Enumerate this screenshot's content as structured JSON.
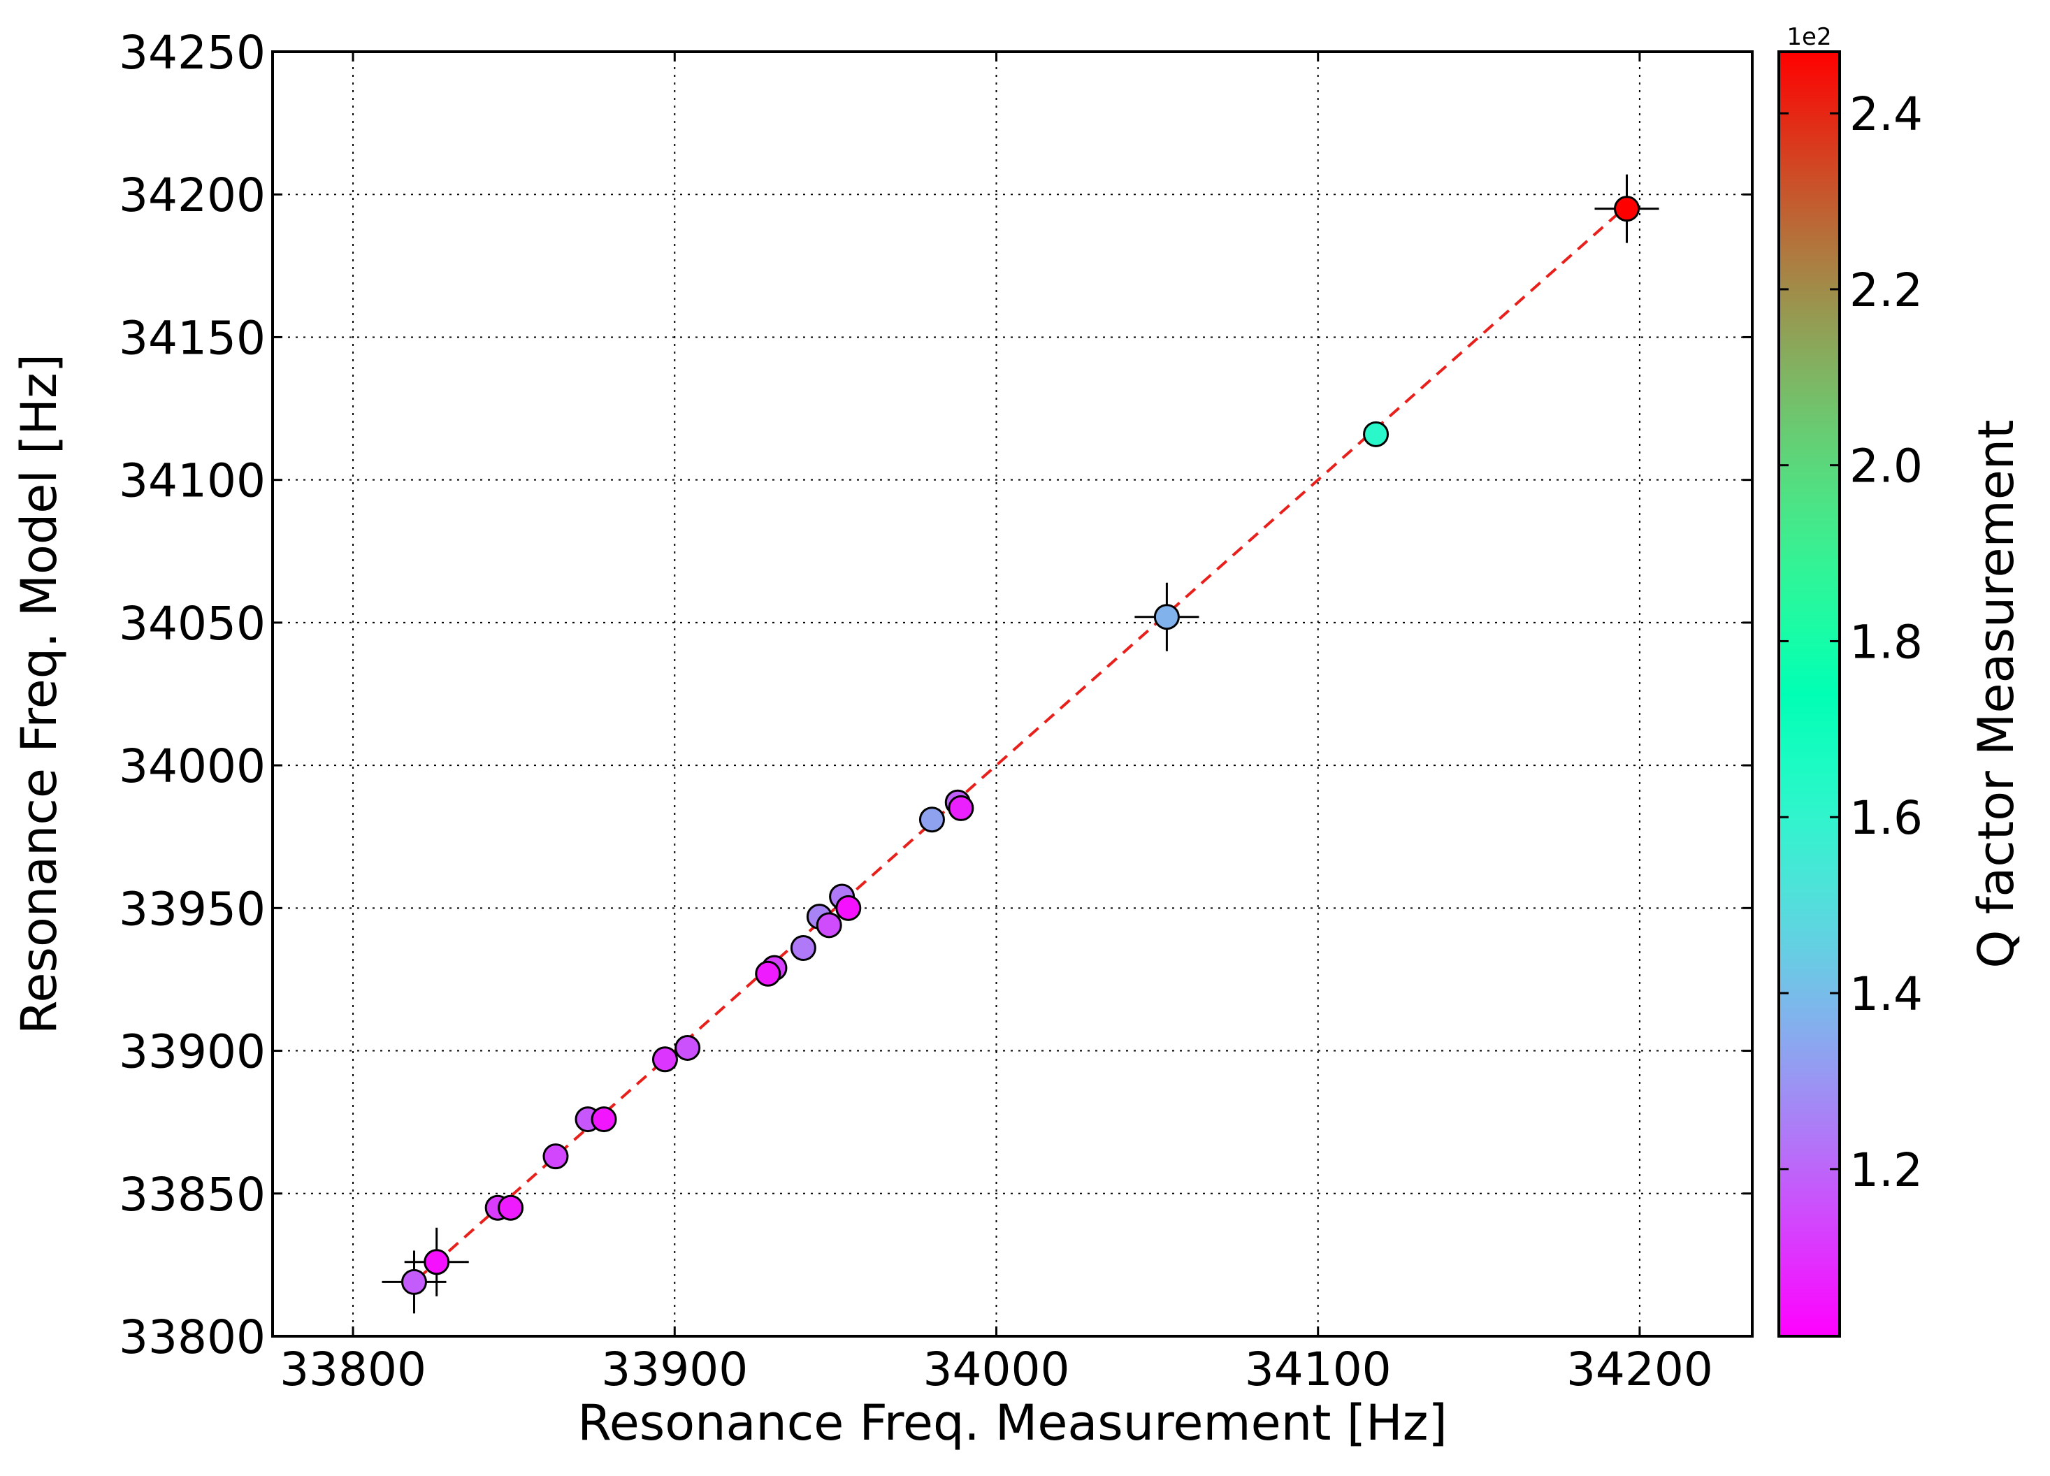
{
  "chart_data": {
    "type": "scatter",
    "title": "",
    "xlabel": "Resonance Freq. Measurement [Hz]",
    "ylabel": "Resonance Freq. Model [Hz]",
    "xlim": [
      33775,
      34235
    ],
    "ylim": [
      33800,
      34250
    ],
    "xticks": [
      "33800",
      "33900",
      "34000",
      "34100",
      "34200"
    ],
    "yticks": [
      "33800",
      "33850",
      "33900",
      "33950",
      "34000",
      "34050",
      "34100",
      "34150",
      "34200",
      "34250"
    ],
    "grid": true,
    "reference_line": {
      "style": "dashed",
      "color": "#e8201c",
      "from": [
        33820,
        33820
      ],
      "to": [
        34195,
        34195
      ]
    },
    "colorbar": {
      "label": "Q factor Measurement",
      "exponent_label": "1e2",
      "range": [
        1.01,
        2.47
      ],
      "ticks": [
        "1.2",
        "1.4",
        "1.6",
        "1.8",
        "2.0",
        "2.2",
        "2.4"
      ],
      "colormap": "rainbow"
    },
    "points": [
      {
        "x": 33819,
        "y": 33819,
        "q": 1.18,
        "xerr": 10,
        "yerr": 11
      },
      {
        "x": 33826,
        "y": 33826,
        "q": 1.04,
        "xerr": 10,
        "yerr": 12
      },
      {
        "x": 33845,
        "y": 33845,
        "q": 1.12,
        "xerr": 0,
        "yerr": 0
      },
      {
        "x": 33849,
        "y": 33845,
        "q": 1.06,
        "xerr": 0,
        "yerr": 0
      },
      {
        "x": 33863,
        "y": 33863,
        "q": 1.14,
        "xerr": 0,
        "yerr": 0
      },
      {
        "x": 33873,
        "y": 33876,
        "q": 1.17,
        "xerr": 0,
        "yerr": 0
      },
      {
        "x": 33878,
        "y": 33876,
        "q": 1.05,
        "xerr": 0,
        "yerr": 0
      },
      {
        "x": 33897,
        "y": 33897,
        "q": 1.11,
        "xerr": 0,
        "yerr": 0
      },
      {
        "x": 33904,
        "y": 33901,
        "q": 1.16,
        "xerr": 0,
        "yerr": 0
      },
      {
        "x": 33931,
        "y": 33929,
        "q": 1.13,
        "xerr": 0,
        "yerr": 0
      },
      {
        "x": 33929,
        "y": 33927,
        "q": 1.06,
        "xerr": 0,
        "yerr": 0
      },
      {
        "x": 33940,
        "y": 33936,
        "q": 1.24,
        "xerr": 0,
        "yerr": 0
      },
      {
        "x": 33945,
        "y": 33947,
        "q": 1.26,
        "xerr": 0,
        "yerr": 0
      },
      {
        "x": 33948,
        "y": 33944,
        "q": 1.15,
        "xerr": 0,
        "yerr": 0
      },
      {
        "x": 33952,
        "y": 33954,
        "q": 1.24,
        "xerr": 0,
        "yerr": 0
      },
      {
        "x": 33954,
        "y": 33950,
        "q": 1.04,
        "xerr": 0,
        "yerr": 0
      },
      {
        "x": 33980,
        "y": 33981,
        "q": 1.33,
        "xerr": 0,
        "yerr": 0
      },
      {
        "x": 33988,
        "y": 33987,
        "q": 1.19,
        "xerr": 0,
        "yerr": 0
      },
      {
        "x": 33989,
        "y": 33985,
        "q": 1.07,
        "xerr": 0,
        "yerr": 0
      },
      {
        "x": 34053,
        "y": 34052,
        "q": 1.37,
        "xerr": 10,
        "yerr": 12
      },
      {
        "x": 34118,
        "y": 34116,
        "q": 1.62,
        "xerr": 0,
        "yerr": 0
      },
      {
        "x": 34196,
        "y": 34195,
        "q": 2.47,
        "xerr": 10,
        "yerr": 12
      }
    ]
  }
}
